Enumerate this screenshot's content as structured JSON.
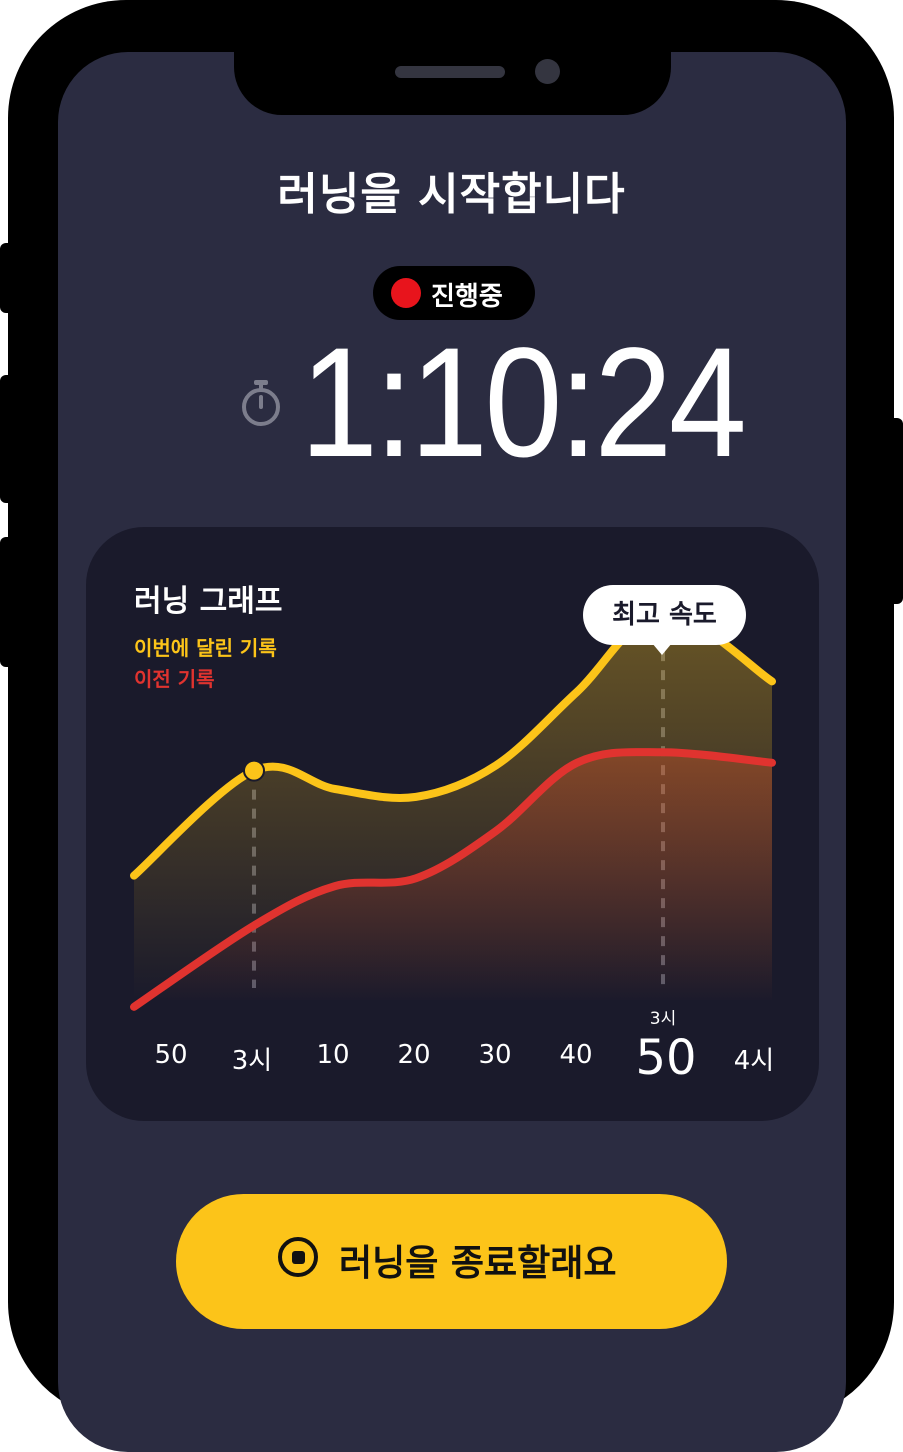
{
  "header": {
    "title": "러닝을 시작합니다"
  },
  "status": {
    "label": "진행중",
    "dot_color": "#e8141c"
  },
  "timer": {
    "elapsed": "1:10:24",
    "icon": "stopwatch-icon"
  },
  "graph": {
    "title": "러닝 그래프",
    "legend_current": "이번에 달린 기록",
    "legend_previous": "이전 기록",
    "tooltip": "최고 속도",
    "highlight_hour": "3시",
    "x_labels": [
      "50",
      "3시",
      "10",
      "20",
      "30",
      "40",
      "50",
      "4시"
    ],
    "colors": {
      "current": "#fcc419",
      "previous": "#e0332f"
    }
  },
  "chart_data": {
    "type": "line",
    "categories": [
      "50",
      "3시",
      "10",
      "20",
      "30",
      "40",
      "50",
      "4시"
    ],
    "series": [
      {
        "name": "이번에 달린 기록",
        "values": [
          30,
          70,
          63,
          60,
          72,
          100,
          130,
          104
        ]
      },
      {
        "name": "이전 기록",
        "values": [
          -20,
          11,
          26,
          29,
          47,
          73,
          77,
          73
        ]
      }
    ],
    "ylim": [
      -25,
      135
    ],
    "grid": false,
    "annotations": [
      {
        "text": "최고 속도",
        "category_index": 6,
        "series_index": 0
      }
    ]
  },
  "actions": {
    "end_run": "러닝을 종료할래요"
  }
}
